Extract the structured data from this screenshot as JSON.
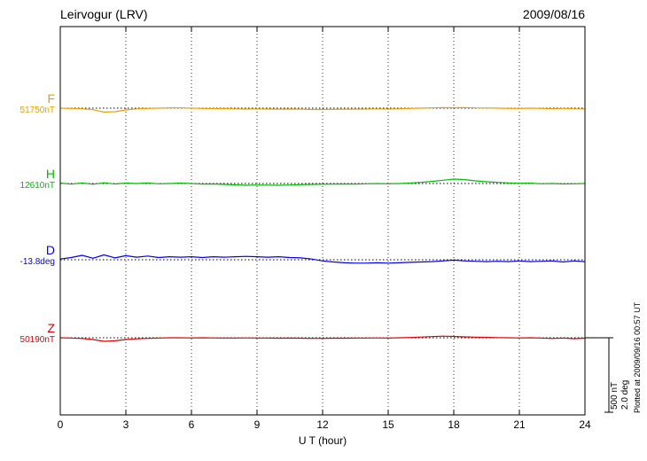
{
  "chart_data": {
    "type": "line",
    "title": "Leirvogur (LRV)",
    "date": "2009/08/16",
    "xlabel": "U T (hour)",
    "x_ticks": [
      0,
      3,
      6,
      9,
      12,
      15,
      18,
      21,
      24
    ],
    "xlim": [
      0,
      24
    ],
    "x_step_hours": 0.5,
    "grid": "dotted-vertical-at-3h",
    "legend_position": "left-of-traces",
    "plotted_at": "Plotted at 2009/09/16 00:57 UT",
    "scale": {
      "label_nt": "500 nT",
      "label_deg": "2.0 deg",
      "nT_per_bar": 500,
      "deg_per_bar": 2.0
    },
    "series": [
      {
        "name": "F",
        "base_value": "51750nT",
        "units": "nT",
        "color": "#e8a000",
        "values": [
          0,
          -2,
          -4,
          -10,
          -26,
          -24,
          -12,
          -5,
          -2,
          0,
          2,
          2,
          0,
          -2,
          -3,
          -3,
          -5,
          -6,
          -5,
          -6,
          -7,
          -6,
          -7,
          -9,
          -9,
          -8,
          -7,
          -7,
          -6,
          -5,
          -6,
          -4,
          -2,
          0,
          2,
          4,
          3,
          4,
          2,
          1,
          0,
          -2,
          -2,
          0,
          -2,
          -4,
          -2,
          -4,
          -5
        ]
      },
      {
        "name": "H",
        "base_value": "12610nT",
        "units": "nT",
        "color": "#00bb00",
        "values": [
          3,
          -4,
          4,
          -5,
          5,
          -3,
          3,
          0,
          4,
          -2,
          0,
          3,
          0,
          -4,
          -3,
          -6,
          -9,
          -12,
          -10,
          -11,
          -12,
          -10,
          -8,
          -6,
          -5,
          -4,
          -3,
          -4,
          -2,
          0,
          -2,
          0,
          3,
          8,
          14,
          22,
          30,
          26,
          18,
          12,
          8,
          4,
          2,
          3,
          -2,
          0,
          -3,
          -2,
          0
        ]
      },
      {
        "name": "D",
        "base_value": "-13.8deg",
        "units": "deg",
        "color": "#0000ee",
        "values": [
          0.02,
          0.06,
          0.12,
          0.04,
          0.13,
          0.05,
          0.11,
          0.07,
          0.1,
          0.06,
          0.08,
          0.07,
          0.08,
          0.06,
          0.08,
          0.07,
          0.08,
          0.09,
          0.08,
          0.07,
          0.08,
          0.06,
          0.05,
          0.02,
          -0.03,
          -0.06,
          -0.08,
          -0.09,
          -0.09,
          -0.08,
          -0.09,
          -0.08,
          -0.07,
          -0.06,
          -0.05,
          -0.03,
          -0.01,
          -0.03,
          -0.04,
          -0.05,
          -0.04,
          -0.05,
          -0.03,
          -0.05,
          -0.04,
          -0.03,
          -0.06,
          -0.03,
          -0.05
        ]
      },
      {
        "name": "Z",
        "base_value": "50190nT",
        "units": "nT",
        "color": "#dd0000",
        "values": [
          0,
          -2,
          -5,
          -12,
          -24,
          -20,
          -12,
          -7,
          -4,
          -2,
          0,
          0,
          -1,
          0,
          -1,
          -2,
          -2,
          -1,
          -2,
          -2,
          -3,
          -2,
          -3,
          -4,
          -4,
          -3,
          -3,
          -2,
          -2,
          -1,
          -2,
          0,
          2,
          5,
          8,
          11,
          9,
          6,
          4,
          3,
          1,
          0,
          -1,
          0,
          -2,
          -5,
          -2,
          -6,
          -3
        ]
      }
    ]
  }
}
